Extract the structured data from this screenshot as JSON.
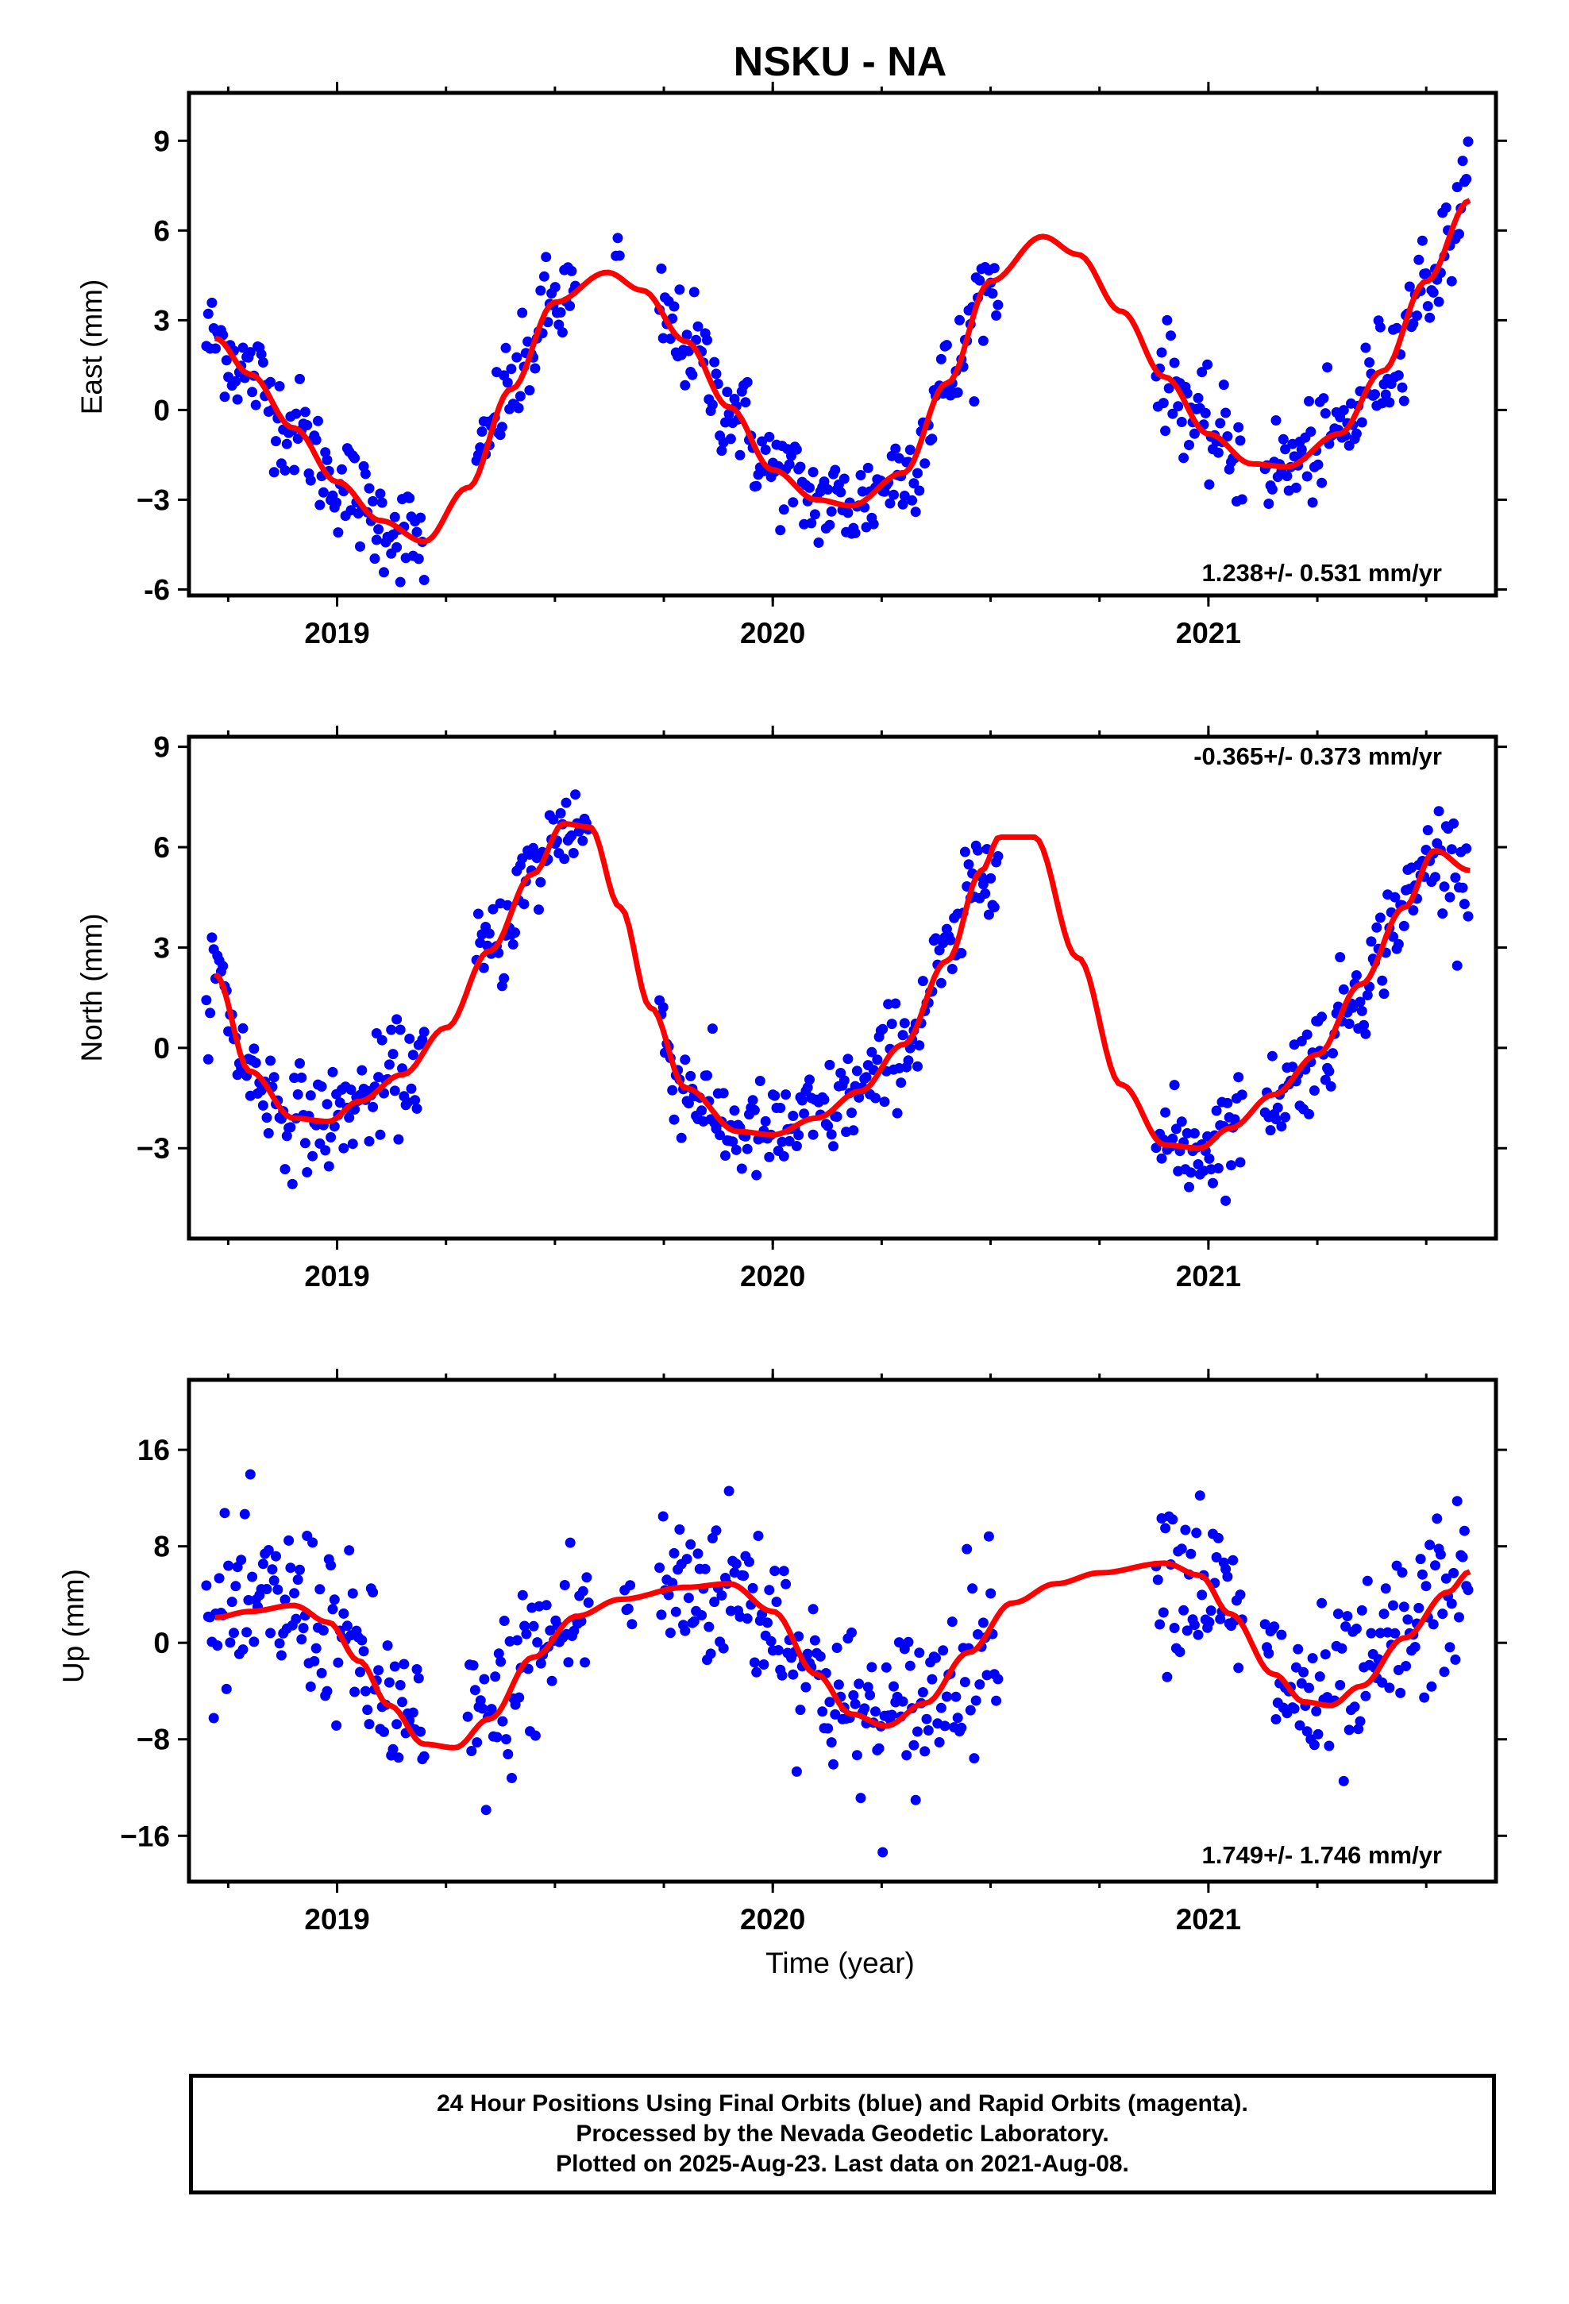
{
  "title": "NSKU - NA",
  "xlabel": "Time (year)",
  "colors": {
    "points": "#0000ff",
    "fit": "#ff0000",
    "frame": "#000000"
  },
  "footer": {
    "line1": "24 Hour Positions Using Final Orbits (blue) and Rapid Orbits (magenta).",
    "line2": "Processed by the Nevada Geodetic Laboratory.",
    "line3": "Plotted on 2025-Aug-23. Last data on 2021-Aug-08."
  },
  "chart_data": [
    {
      "type": "scatter",
      "name": "east",
      "ylabel": "East (mm)",
      "rate_text": "1.238+/- 0.531 mm/yr",
      "rate_placement": "bottom-right",
      "xlim": [
        2018.66,
        2021.66
      ],
      "ylim": [
        -6.2,
        10.6
      ],
      "yticks": [
        -6,
        -3,
        0,
        3,
        6,
        9
      ],
      "ytick_labels": [
        "-6",
        "−3",
        "0",
        "3",
        "6",
        "9"
      ],
      "xticks": [
        2019,
        2020,
        2021
      ],
      "xtick_labels": [
        "2019",
        "2020",
        "2021"
      ],
      "x_minor_step": 0.25,
      "grid": false,
      "data_segments": [
        [
          2018.7,
          2019.2
        ],
        [
          2019.32,
          2019.55
        ],
        [
          2019.64,
          2019.65
        ],
        [
          2019.74,
          2020.52
        ],
        [
          2020.88,
          2021.08
        ],
        [
          2021.13,
          2021.6
        ]
      ],
      "fit": {
        "x": [
          2018.72,
          2018.8,
          2018.9,
          2019.0,
          2019.1,
          2019.2,
          2019.3,
          2019.4,
          2019.5,
          2019.62,
          2019.7,
          2019.8,
          2019.9,
          2020.0,
          2020.1,
          2020.18,
          2020.3,
          2020.4,
          2020.5,
          2020.62,
          2020.7,
          2020.8,
          2020.9,
          2021.0,
          2021.1,
          2021.18,
          2021.3,
          2021.4,
          2021.5,
          2021.6
        ],
        "y": [
          2.4,
          1.2,
          -0.6,
          -2.4,
          -3.7,
          -4.4,
          -2.6,
          0.7,
          3.6,
          4.6,
          4.0,
          2.3,
          0.1,
          -2.0,
          -3.0,
          -3.2,
          -2.1,
          0.9,
          4.3,
          5.8,
          5.2,
          3.3,
          1.1,
          -0.8,
          -1.8,
          -1.9,
          -0.8,
          1.3,
          4.3,
          7.0
        ]
      }
    },
    {
      "type": "scatter",
      "name": "north",
      "ylabel": "North (mm)",
      "rate_text": "-0.365+/- 0.373 mm/yr",
      "rate_placement": "top-right",
      "xlim": [
        2018.66,
        2021.66
      ],
      "ylim": [
        -5.7,
        9.3
      ],
      "yticks": [
        -3,
        0,
        3,
        6,
        9
      ],
      "ytick_labels": [
        "−3",
        "0",
        "3",
        "6",
        "9"
      ],
      "xticks": [
        2019,
        2020,
        2021
      ],
      "xtick_labels": [
        "2019",
        "2020",
        "2021"
      ],
      "x_minor_step": 0.25,
      "grid": false,
      "data_segments": [
        [
          2018.7,
          2019.2
        ],
        [
          2019.32,
          2019.58
        ],
        [
          2019.74,
          2020.52
        ],
        [
          2020.88,
          2021.08
        ],
        [
          2021.13,
          2021.6
        ]
      ],
      "fit": {
        "x": [
          2018.72,
          2018.8,
          2018.9,
          2018.98,
          2019.05,
          2019.15,
          2019.25,
          2019.35,
          2019.45,
          2019.52,
          2019.58,
          2019.65,
          2019.72,
          2019.8,
          2019.92,
          2020.0,
          2020.1,
          2020.2,
          2020.3,
          2020.4,
          2020.48,
          2020.52,
          2020.6,
          2020.7,
          2020.8,
          2020.9,
          2020.98,
          2021.05,
          2021.15,
          2021.25,
          2021.35,
          2021.45,
          2021.52,
          2021.6
        ],
        "y": [
          2.2,
          -0.7,
          -2.1,
          -2.2,
          -1.6,
          -0.8,
          0.6,
          2.9,
          5.2,
          6.7,
          6.6,
          4.2,
          1.2,
          -1.2,
          -2.5,
          -2.6,
          -2.1,
          -1.3,
          0.1,
          2.6,
          5.3,
          6.3,
          6.3,
          2.7,
          -1.1,
          -2.9,
          -3.0,
          -2.4,
          -1.4,
          -0.2,
          1.9,
          4.2,
          5.9,
          5.3
        ]
      }
    },
    {
      "type": "scatter",
      "name": "up",
      "ylabel": "Up (mm)",
      "rate_text": "1.749+/- 1.746 mm/yr",
      "rate_placement": "bottom-right",
      "xlim": [
        2018.66,
        2021.66
      ],
      "ylim": [
        -19.8,
        21.8
      ],
      "yticks": [
        -16,
        -8,
        0,
        8,
        16
      ],
      "ytick_labels": [
        "−16",
        "−8",
        "0",
        "8",
        "16"
      ],
      "xticks": [
        2019,
        2020,
        2021
      ],
      "xtick_labels": [
        "2019",
        "2020",
        "2021"
      ],
      "x_minor_step": 0.25,
      "grid": false,
      "data_segments": [
        [
          2018.7,
          2019.2
        ],
        [
          2019.3,
          2019.58
        ],
        [
          2019.66,
          2019.68
        ],
        [
          2019.74,
          2020.52
        ],
        [
          2020.88,
          2021.08
        ],
        [
          2021.13,
          2021.6
        ]
      ],
      "fit": {
        "x": [
          2018.72,
          2018.8,
          2018.9,
          2018.98,
          2019.05,
          2019.12,
          2019.2,
          2019.27,
          2019.35,
          2019.45,
          2019.55,
          2019.65,
          2019.8,
          2019.9,
          2020.0,
          2020.1,
          2020.18,
          2020.26,
          2020.35,
          2020.45,
          2020.55,
          2020.65,
          2020.75,
          2020.9,
          2020.98,
          2021.05,
          2021.15,
          2021.22,
          2021.28,
          2021.35,
          2021.45,
          2021.55,
          2021.6
        ],
        "y": [
          2.1,
          2.6,
          3.1,
          1.7,
          -1.5,
          -5.2,
          -8.4,
          -8.7,
          -6.3,
          -1.2,
          2.2,
          3.6,
          4.6,
          4.9,
          2.6,
          -2.6,
          -5.9,
          -6.9,
          -5.0,
          -0.8,
          3.3,
          4.9,
          5.8,
          6.6,
          5.6,
          2.4,
          -2.6,
          -4.9,
          -5.2,
          -3.6,
          0.4,
          4.2,
          5.9
        ]
      }
    }
  ]
}
